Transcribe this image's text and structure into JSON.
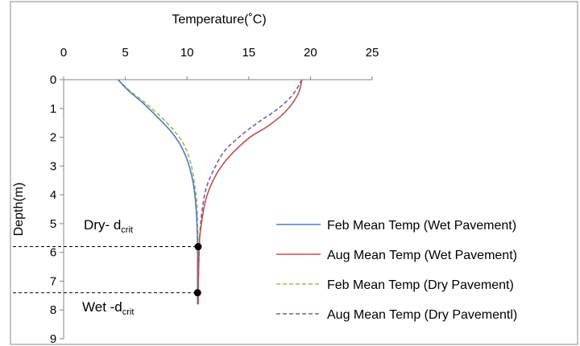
{
  "chart_data": {
    "type": "line",
    "xlabel": "Temperature(˚C)",
    "ylabel": "Depth(m)",
    "xlim": [
      0,
      25
    ],
    "ylim": [
      0,
      9
    ],
    "x_ticks": [
      0,
      5,
      10,
      15,
      20,
      25
    ],
    "y_ticks": [
      0,
      1,
      2,
      3,
      4,
      5,
      6,
      7,
      8,
      9
    ],
    "x_axis_position": "top",
    "y_axis_inverted": true,
    "grid": false,
    "legend_position": "bottom-right",
    "series": [
      {
        "name": "Feb Mean Temp (Wet Pavement)",
        "color": "#4a7ebb",
        "dash": "solid",
        "points": [
          [
            4.4,
            0
          ],
          [
            5.3,
            0.4
          ],
          [
            6.4,
            0.8
          ],
          [
            7.6,
            1.3
          ],
          [
            8.7,
            1.8
          ],
          [
            9.5,
            2.3
          ],
          [
            10.1,
            2.9
          ],
          [
            10.5,
            3.6
          ],
          [
            10.7,
            4.3
          ],
          [
            10.8,
            5.0
          ],
          [
            10.85,
            5.8
          ],
          [
            10.85,
            6.6
          ],
          [
            10.85,
            7.4
          ],
          [
            10.85,
            7.8
          ]
        ]
      },
      {
        "name": "Aug Mean Temp (Wet Pavement)",
        "color": "#c0504d",
        "dash": "solid",
        "points": [
          [
            19.3,
            0
          ],
          [
            19.0,
            0.5
          ],
          [
            18.0,
            1.1
          ],
          [
            16.6,
            1.6
          ],
          [
            15.1,
            2.0
          ],
          [
            13.8,
            2.5
          ],
          [
            12.8,
            3.0
          ],
          [
            12.0,
            3.6
          ],
          [
            11.5,
            4.2
          ],
          [
            11.2,
            4.9
          ],
          [
            11.0,
            5.6
          ],
          [
            10.95,
            6.4
          ],
          [
            10.9,
            7.2
          ],
          [
            10.9,
            7.8
          ]
        ]
      },
      {
        "name": "Feb Mean Temp (Dry Pavement)",
        "color": "#9bbb59",
        "dash": "dashed",
        "points": [
          [
            4.4,
            0
          ],
          [
            5.4,
            0.4
          ],
          [
            6.6,
            0.8
          ],
          [
            7.9,
            1.3
          ],
          [
            9.0,
            1.8
          ],
          [
            9.8,
            2.3
          ],
          [
            10.3,
            2.9
          ],
          [
            10.6,
            3.6
          ],
          [
            10.8,
            4.3
          ],
          [
            10.85,
            5.0
          ],
          [
            10.9,
            5.8
          ],
          [
            10.9,
            6.6
          ],
          [
            10.9,
            7.4
          ],
          [
            10.9,
            7.8
          ]
        ]
      },
      {
        "name": "Aug Mean Temp (Dry Pavementl)",
        "color": "#7460a8",
        "dash": "dashed",
        "points": [
          [
            19.3,
            0
          ],
          [
            18.6,
            0.5
          ],
          [
            17.4,
            1.0
          ],
          [
            15.7,
            1.5
          ],
          [
            14.2,
            2.0
          ],
          [
            13.0,
            2.5
          ],
          [
            12.2,
            3.1
          ],
          [
            11.6,
            3.7
          ],
          [
            11.3,
            4.3
          ],
          [
            11.1,
            5.0
          ],
          [
            11.0,
            5.7
          ],
          [
            10.95,
            6.4
          ],
          [
            10.9,
            7.2
          ],
          [
            10.9,
            7.8
          ]
        ]
      }
    ],
    "annotations": [
      {
        "id": "dry",
        "main": "Dry- d",
        "sub": "crit",
        "point": [
          10.9,
          5.8
        ]
      },
      {
        "id": "wet",
        "main": "Wet -d",
        "sub": "crit",
        "point": [
          10.85,
          7.4
        ]
      }
    ]
  }
}
